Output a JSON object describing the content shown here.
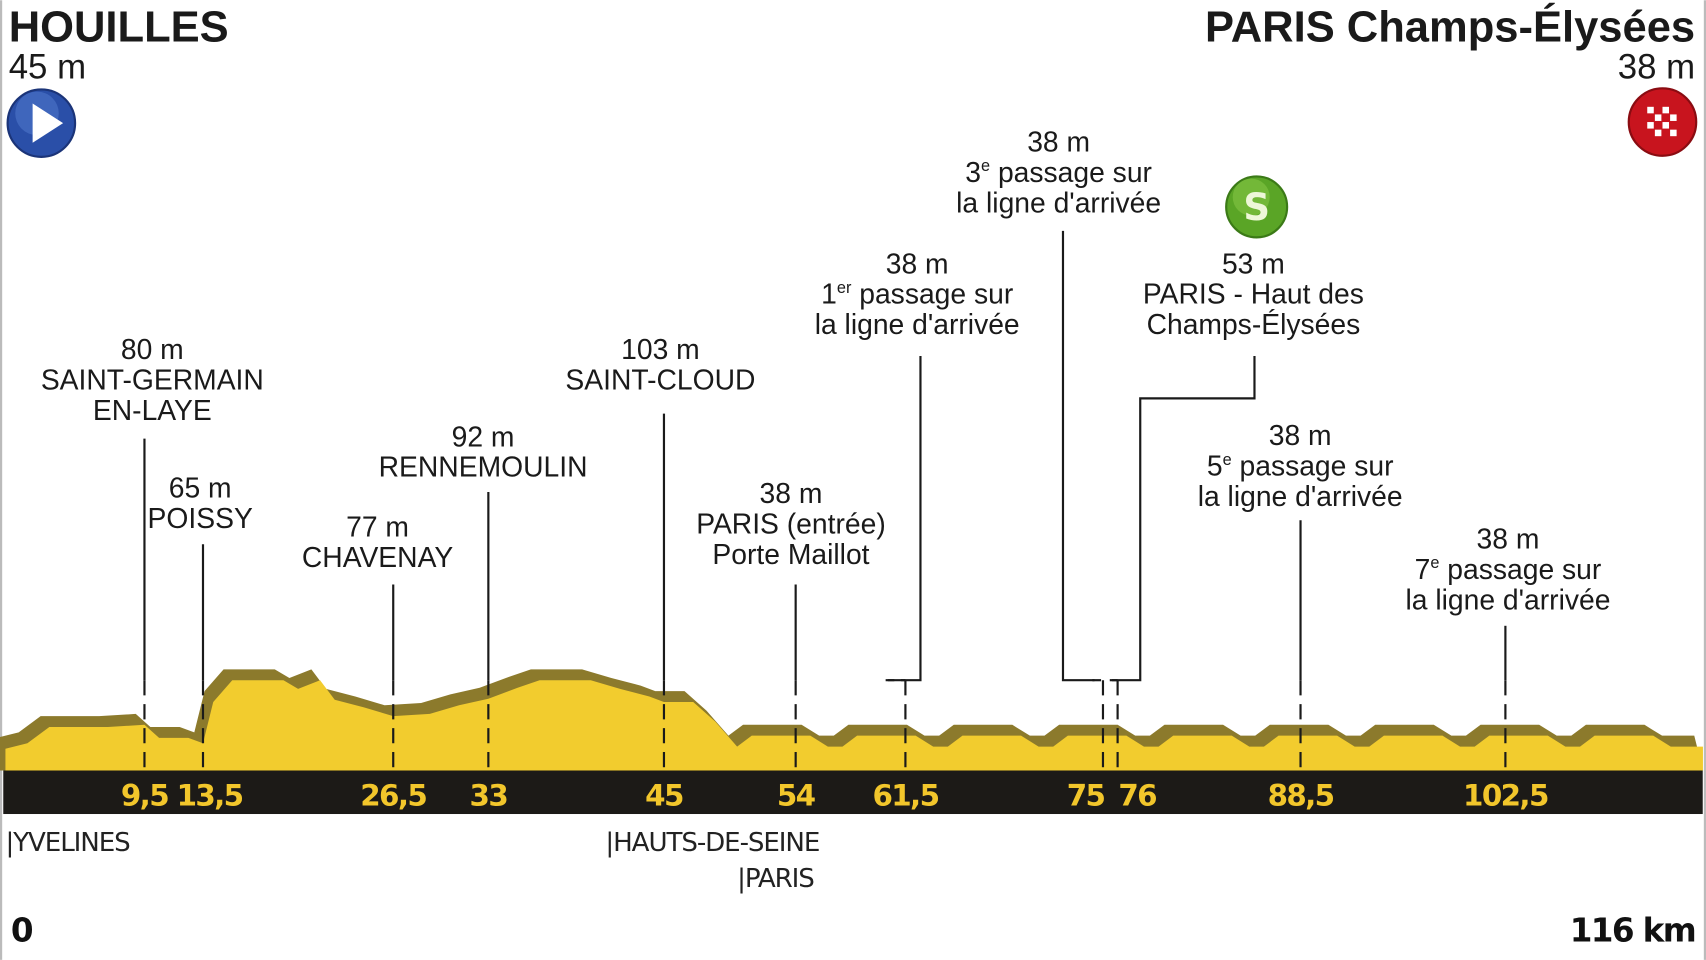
{
  "start": {
    "name": "HOUILLES",
    "altitude": "45 m",
    "icon": "start-play-icon",
    "color": "#2a4fa8"
  },
  "finish": {
    "name": "PARIS Champs-Élysées",
    "altitude": "38 m",
    "icon": "finish-checkered-flag-icon",
    "color": "#c8141e"
  },
  "sprint": {
    "icon": "intermediate-sprint-icon",
    "letter": "S",
    "color": "#5aa526"
  },
  "waypoints": [
    {
      "km": 9.5,
      "km_label": "9,5",
      "altitude": "80 m",
      "lines": [
        "SAINT-GERMAIN",
        "EN-LAYE"
      ]
    },
    {
      "km": 13.5,
      "km_label": "13,5",
      "altitude": "65 m",
      "lines": [
        "POISSY"
      ]
    },
    {
      "km": 26.5,
      "km_label": "26,5",
      "altitude": "77 m",
      "lines": [
        "CHAVENAY"
      ]
    },
    {
      "km": 33,
      "km_label": "33",
      "altitude": "92 m",
      "lines": [
        "RENNEMOULIN"
      ]
    },
    {
      "km": 45,
      "km_label": "45",
      "altitude": "103 m",
      "lines": [
        "SAINT-CLOUD"
      ]
    },
    {
      "km": 54,
      "km_label": "54",
      "altitude": "38 m",
      "lines": [
        "PARIS (entrée)",
        "Porte Maillot"
      ]
    },
    {
      "km": 61.5,
      "km_label": "61,5",
      "altitude": "38 m",
      "ordinal": "1",
      "ordinal_suffix": "er",
      "lines": [
        " passage sur",
        "la ligne d'arrivée"
      ]
    },
    {
      "km": 75,
      "km_label": "75",
      "altitude": "38 m",
      "ordinal": "3",
      "ordinal_suffix": "e",
      "lines": [
        " passage sur",
        "la ligne d'arrivée"
      ]
    },
    {
      "km": 76,
      "km_label": "76",
      "altitude": "53 m",
      "lines": [
        "PARIS - Haut des",
        "Champs-Élysées"
      ],
      "sprint": true
    },
    {
      "km": 88.5,
      "km_label": "88,5",
      "altitude": "38 m",
      "ordinal": "5",
      "ordinal_suffix": "e",
      "lines": [
        " passage sur",
        "la ligne d'arrivée"
      ]
    },
    {
      "km": 102.5,
      "km_label": "102,5",
      "altitude": "38 m",
      "ordinal": "7",
      "ordinal_suffix": "e",
      "lines": [
        " passage sur",
        "la ligne d'arrivée"
      ]
    }
  ],
  "departments": [
    {
      "label": "|YVELINES",
      "km": 0
    },
    {
      "label": "|HAUTS-DE-SEINE",
      "km": 41
    },
    {
      "label": "|PARIS",
      "km": 50
    }
  ],
  "distance": {
    "start_label": "0",
    "end_label": "116 km",
    "total_km": 116
  },
  "colors": {
    "profile": "#f2cc2e",
    "profile_shadow": "#8c7a2c",
    "axis_bar": "#1c1a17",
    "km_text": "#f2c62b"
  },
  "profile": [
    [
      0,
      40
    ],
    [
      1.5,
      45
    ],
    [
      3,
      60
    ],
    [
      7,
      60
    ],
    [
      9.5,
      62
    ],
    [
      10.5,
      50
    ],
    [
      12.5,
      50
    ],
    [
      13.5,
      45
    ],
    [
      14.2,
      83
    ],
    [
      15.5,
      103
    ],
    [
      19,
      103
    ],
    [
      20,
      95
    ],
    [
      21.5,
      103
    ],
    [
      22.5,
      85
    ],
    [
      24.5,
      78
    ],
    [
      26.5,
      70
    ],
    [
      29,
      72
    ],
    [
      31,
      80
    ],
    [
      33,
      86
    ],
    [
      35,
      96
    ],
    [
      36.5,
      103
    ],
    [
      40,
      103
    ],
    [
      42,
      95
    ],
    [
      44,
      88
    ],
    [
      45,
      83
    ],
    [
      47,
      83
    ],
    [
      48.5,
      65
    ],
    [
      50,
      42
    ],
    [
      51,
      52
    ],
    [
      55,
      52
    ],
    [
      56.2,
      42
    ],
    [
      57.2,
      42
    ],
    [
      58.2,
      52
    ],
    [
      62.2,
      52
    ],
    [
      63.4,
      42
    ],
    [
      64.4,
      42
    ],
    [
      65.4,
      52
    ],
    [
      69.4,
      52
    ],
    [
      70.6,
      42
    ],
    [
      71.6,
      42
    ],
    [
      72.6,
      52
    ],
    [
      76.6,
      52
    ],
    [
      77.8,
      42
    ],
    [
      78.8,
      42
    ],
    [
      79.8,
      52
    ],
    [
      83.8,
      52
    ],
    [
      85,
      42
    ],
    [
      86,
      42
    ],
    [
      87,
      52
    ],
    [
      91,
      52
    ],
    [
      92.2,
      42
    ],
    [
      93.2,
      42
    ],
    [
      94.2,
      52
    ],
    [
      98.2,
      52
    ],
    [
      99.4,
      42
    ],
    [
      100.4,
      42
    ],
    [
      101.4,
      52
    ],
    [
      105.4,
      52
    ],
    [
      106.6,
      42
    ],
    [
      107.6,
      42
    ],
    [
      108.6,
      52
    ],
    [
      112.6,
      52
    ],
    [
      113.8,
      42
    ],
    [
      116,
      42
    ]
  ]
}
